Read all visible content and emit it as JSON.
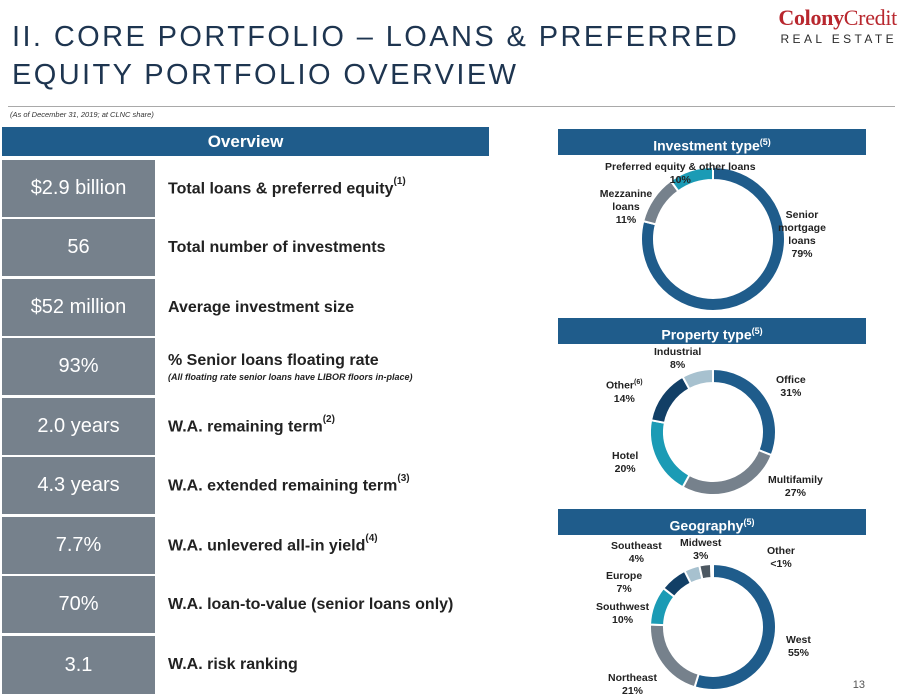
{
  "header": {
    "title_line1": "II. CORE PORTFOLIO – LOANS & PREFERRED",
    "title_line2": "EQUITY PORTFOLIO OVERVIEW",
    "logo_part1": "Colony",
    "logo_part2": "Credit",
    "logo_sub": "REAL ESTATE",
    "as_of": "(As of December 31, 2019; at CLNC share)"
  },
  "overview": {
    "heading": "Overview",
    "rows": [
      {
        "value": "$2.9 billion",
        "label": "Total loans & preferred equity",
        "sup": "(1)"
      },
      {
        "value": "56",
        "label": "Total number of investments"
      },
      {
        "value": "$52 million",
        "label": "Average investment size"
      },
      {
        "value": "93%",
        "label": "% Senior loans floating rate",
        "note": "(All floating rate senior loans have LIBOR floors in-place)"
      },
      {
        "value": "2.0 years",
        "label": "W.A. remaining term",
        "sup": "(2)"
      },
      {
        "value": "4.3 years",
        "label": "W.A. extended remaining term",
        "sup": "(3)"
      },
      {
        "value": "7.7%",
        "label": "W.A. unlevered all-in yield",
        "sup": "(4)"
      },
      {
        "value": "70%",
        "label": "W.A. loan-to-value (senior loans only)"
      },
      {
        "value": "3.1",
        "label": "W.A. risk ranking"
      }
    ]
  },
  "colors": {
    "navy": "#1f5c8b",
    "gray": "#76818c",
    "teal": "#1b9bb5",
    "lightblue": "#a7c1cf",
    "darknavy": "#123f66",
    "darkgray": "#4d5862"
  },
  "chart_data": [
    {
      "type": "pie",
      "title": "Investment type",
      "title_sup": "(5)",
      "slices": [
        {
          "name": "Senior mortgage loans",
          "value": 79,
          "label": "79%",
          "color": "#1f5c8b"
        },
        {
          "name": "Mezzanine loans",
          "value": 11,
          "label": "11%",
          "color": "#76818c"
        },
        {
          "name": "Preferred equity & other loans",
          "value": 10,
          "label": "10%",
          "color": "#1b9bb5"
        }
      ]
    },
    {
      "type": "pie",
      "title": "Property type",
      "title_sup": "(5)",
      "slices": [
        {
          "name": "Office",
          "value": 31,
          "label": "31%",
          "color": "#1f5c8b"
        },
        {
          "name": "Multifamily",
          "value": 27,
          "label": "27%",
          "color": "#76818c"
        },
        {
          "name": "Hotel",
          "value": 20,
          "label": "20%",
          "color": "#1b9bb5"
        },
        {
          "name": "Other",
          "name_sup": "(6)",
          "value": 14,
          "label": "14%",
          "color": "#123f66"
        },
        {
          "name": "Industrial",
          "value": 8,
          "label": "8%",
          "color": "#a7c1cf"
        }
      ]
    },
    {
      "type": "pie",
      "title": "Geography",
      "title_sup": "(5)",
      "slices": [
        {
          "name": "West",
          "value": 55,
          "label": "55%",
          "color": "#1f5c8b"
        },
        {
          "name": "Northeast",
          "value": 21,
          "label": "21%",
          "color": "#76818c"
        },
        {
          "name": "Southwest",
          "value": 10,
          "label": "10%",
          "color": "#1b9bb5"
        },
        {
          "name": "Europe",
          "value": 7,
          "label": "7%",
          "color": "#123f66"
        },
        {
          "name": "Southeast",
          "value": 4,
          "label": "4%",
          "color": "#a7c1cf"
        },
        {
          "name": "Midwest",
          "value": 3,
          "label": "3%",
          "color": "#4d5862"
        },
        {
          "name": "Other",
          "value": 0.5,
          "label": "<1%",
          "color": "#8fa5b4"
        }
      ]
    }
  ],
  "page_number": "13"
}
